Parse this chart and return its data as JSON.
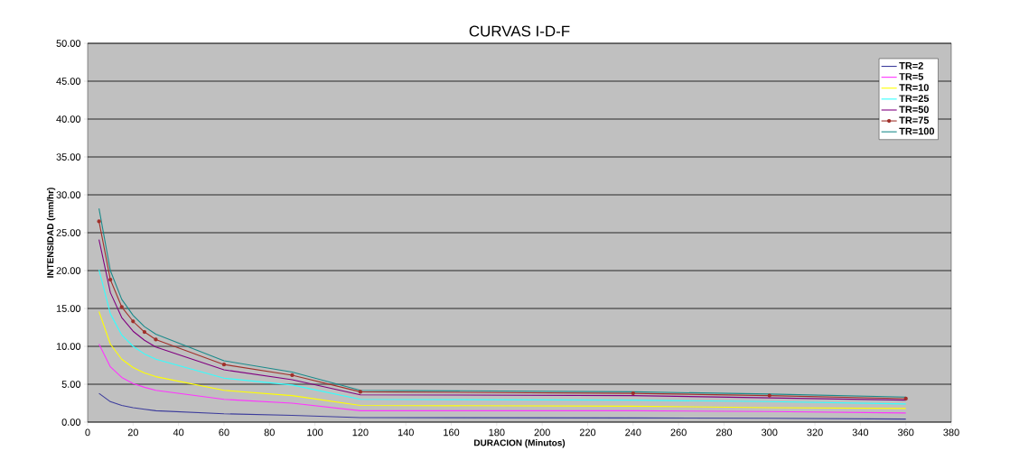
{
  "chart_data": {
    "type": "line",
    "title": "CURVAS I-D-F",
    "xlabel": "DURACION (Minutos)",
    "ylabel": "INTENSIDAD (mm/hr)",
    "x": [
      5,
      10,
      15,
      20,
      25,
      30,
      60,
      90,
      120,
      240,
      300,
      360
    ],
    "series": [
      {
        "name": "TR=2",
        "color": "#3c3c9c",
        "values": [
          3.8,
          2.7,
          2.2,
          1.9,
          1.7,
          1.5,
          1.1,
          0.9,
          0.6,
          0.55,
          0.5,
          0.4
        ]
      },
      {
        "name": "TR=5",
        "color": "#ff33ff",
        "values": [
          10.3,
          7.3,
          5.9,
          5.1,
          4.6,
          4.2,
          3.0,
          2.5,
          1.5,
          1.5,
          1.4,
          1.2
        ]
      },
      {
        "name": "TR=10",
        "color": "#ffff00",
        "values": [
          14.6,
          10.3,
          8.3,
          7.2,
          6.5,
          6.0,
          4.2,
          3.5,
          2.2,
          2.1,
          1.9,
          1.8
        ]
      },
      {
        "name": "TR=25",
        "color": "#33ffff",
        "values": [
          20.1,
          14.3,
          11.5,
          10.0,
          9.0,
          8.3,
          5.8,
          4.9,
          3.0,
          2.9,
          2.7,
          2.4
        ]
      },
      {
        "name": "TR=50",
        "color": "#800080",
        "values": [
          24.1,
          17.1,
          13.8,
          12.0,
          10.8,
          9.9,
          6.9,
          5.6,
          3.6,
          3.5,
          3.2,
          2.9
        ]
      },
      {
        "name": "TR=75",
        "color": "#a0302a",
        "marker": "circle",
        "values": [
          26.5,
          18.8,
          15.2,
          13.3,
          11.9,
          10.9,
          7.6,
          6.2,
          4.0,
          3.8,
          3.5,
          3.1
        ]
      },
      {
        "name": "TR=100",
        "color": "#1a8a8a",
        "values": [
          28.2,
          20.0,
          16.2,
          14.1,
          12.6,
          11.6,
          8.1,
          6.6,
          4.2,
          4.0,
          3.7,
          3.3
        ]
      }
    ],
    "xlim": [
      0,
      380
    ],
    "xticks": [
      0,
      20,
      40,
      60,
      80,
      100,
      120,
      140,
      160,
      180,
      200,
      220,
      240,
      260,
      280,
      300,
      320,
      340,
      360,
      380
    ],
    "ylim": [
      0,
      50
    ],
    "yticks": [
      {
        "value": 0,
        "label": "0.00"
      },
      {
        "value": 5,
        "label": "5.00"
      },
      {
        "value": 10,
        "label": "10.00"
      },
      {
        "value": 15,
        "label": "15.00"
      },
      {
        "value": 20,
        "label": "20.00"
      },
      {
        "value": 25,
        "label": "25.00"
      },
      {
        "value": 30,
        "label": "30.00"
      },
      {
        "value": 35,
        "label": "35.00"
      },
      {
        "value": 40,
        "label": "40.00"
      },
      {
        "value": 45,
        "label": "45.00"
      },
      {
        "value": 50,
        "label": "50.00"
      }
    ],
    "grid": "y",
    "legend": "top right"
  }
}
